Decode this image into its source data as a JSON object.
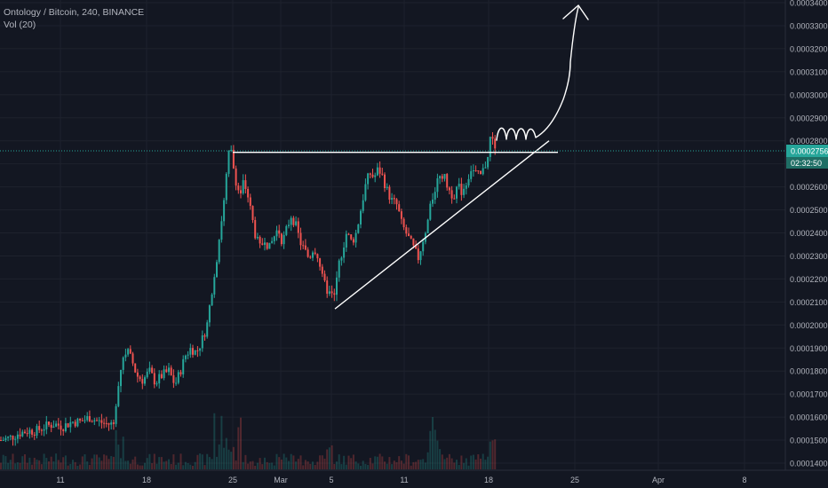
{
  "header": {
    "symbol": "Ontology / Bitcoin, 240, BINANCE",
    "vol_label": "Vol (20)"
  },
  "price_axis": {
    "labels": [
      "0.0003400",
      "0.0003300",
      "0.0003200",
      "0.0003100",
      "0.0003000",
      "0.0002900",
      "0.0002800",
      "0.0002700",
      "0.0002600",
      "0.0002500",
      "0.0002400",
      "0.0002300",
      "0.0002200",
      "0.0002100",
      "0.0002000",
      "0.0001900",
      "0.0001800",
      "0.0001700",
      "0.0001600",
      "0.0001500",
      "0.0001400"
    ],
    "last_price": "0.0002756",
    "countdown": "02:32:50"
  },
  "time_axis": {
    "labels": [
      "11",
      "18",
      "25",
      "Mar",
      "5",
      "11",
      "18",
      "25",
      "Apr",
      "8"
    ]
  },
  "colors": {
    "background": "#131722",
    "grid": "#1e222d",
    "up": "#26a69a",
    "down": "#ef5350",
    "price_tag": "#26a69a",
    "drawing": "#ffffff"
  },
  "chart_data": {
    "type": "candlestick",
    "symbol": "Ontology / Bitcoin",
    "interval": "240",
    "exchange": "BINANCE",
    "indicator": "Vol (20)",
    "ylim": [
      0.000139,
      0.000344
    ],
    "last_price": 0.0002756,
    "x_tick_labels": [
      "11",
      "18",
      "25",
      "Mar",
      "5",
      "11",
      "18",
      "25",
      "Apr",
      "8"
    ],
    "price_path": [
      {
        "x": 0,
        "y": 0.00015
      },
      {
        "x": 10,
        "y": 0.000151
      },
      {
        "x": 20,
        "y": 0.000153
      },
      {
        "x": 30,
        "y": 0.000154
      },
      {
        "x": 40,
        "y": 0.000154
      },
      {
        "x": 50,
        "y": 0.000156
      },
      {
        "x": 60,
        "y": 0.000157
      },
      {
        "x": 70,
        "y": 0.000156
      },
      {
        "x": 80,
        "y": 0.000158
      },
      {
        "x": 90,
        "y": 0.000158
      },
      {
        "x": 100,
        "y": 0.00016
      },
      {
        "x": 110,
        "y": 0.000158
      },
      {
        "x": 120,
        "y": 0.000157
      },
      {
        "x": 127,
        "y": 0.000157
      },
      {
        "x": 131,
        "y": 0.000172
      },
      {
        "x": 137,
        "y": 0.000186
      },
      {
        "x": 142,
        "y": 0.000189
      },
      {
        "x": 148,
        "y": 0.000184
      },
      {
        "x": 153,
        "y": 0.000178
      },
      {
        "x": 160,
        "y": 0.000176
      },
      {
        "x": 167,
        "y": 0.00018
      },
      {
        "x": 174,
        "y": 0.000175
      },
      {
        "x": 181,
        "y": 0.000178
      },
      {
        "x": 189,
        "y": 0.00018
      },
      {
        "x": 196,
        "y": 0.000174
      },
      {
        "x": 202,
        "y": 0.00018
      },
      {
        "x": 208,
        "y": 0.000187
      },
      {
        "x": 214,
        "y": 0.00019
      },
      {
        "x": 220,
        "y": 0.000188
      },
      {
        "x": 226,
        "y": 0.000193
      },
      {
        "x": 232,
        "y": 0.0002
      },
      {
        "x": 237,
        "y": 0.000214
      },
      {
        "x": 242,
        "y": 0.000226
      },
      {
        "x": 247,
        "y": 0.000242
      },
      {
        "x": 252,
        "y": 0.000256
      },
      {
        "x": 255,
        "y": 0.00027
      },
      {
        "x": 258,
        "y": 0.000278
      },
      {
        "x": 261,
        "y": 0.00027
      },
      {
        "x": 265,
        "y": 0.000262
      },
      {
        "x": 269,
        "y": 0.000256
      },
      {
        "x": 273,
        "y": 0.000262
      },
      {
        "x": 277,
        "y": 0.000258
      },
      {
        "x": 282,
        "y": 0.000248
      },
      {
        "x": 287,
        "y": 0.000238
      },
      {
        "x": 292,
        "y": 0.000233
      },
      {
        "x": 297,
        "y": 0.000238
      },
      {
        "x": 302,
        "y": 0.000233
      },
      {
        "x": 307,
        "y": 0.000238
      },
      {
        "x": 312,
        "y": 0.000242
      },
      {
        "x": 317,
        "y": 0.000236
      },
      {
        "x": 322,
        "y": 0.000242
      },
      {
        "x": 327,
        "y": 0.000248
      },
      {
        "x": 332,
        "y": 0.000243
      },
      {
        "x": 337,
        "y": 0.000236
      },
      {
        "x": 342,
        "y": 0.000232
      },
      {
        "x": 347,
        "y": 0.000229
      },
      {
        "x": 352,
        "y": 0.000234
      },
      {
        "x": 357,
        "y": 0.00023
      },
      {
        "x": 361,
        "y": 0.000221
      },
      {
        "x": 366,
        "y": 0.000216
      },
      {
        "x": 371,
        "y": 0.000213
      },
      {
        "x": 376,
        "y": 0.000212
      },
      {
        "x": 379,
        "y": 0.000224
      },
      {
        "x": 384,
        "y": 0.000232
      },
      {
        "x": 389,
        "y": 0.00024
      },
      {
        "x": 395,
        "y": 0.000236
      },
      {
        "x": 400,
        "y": 0.00024
      },
      {
        "x": 405,
        "y": 0.00025
      },
      {
        "x": 410,
        "y": 0.00026
      },
      {
        "x": 415,
        "y": 0.000266
      },
      {
        "x": 420,
        "y": 0.000264
      },
      {
        "x": 425,
        "y": 0.000268
      },
      {
        "x": 430,
        "y": 0.000264
      },
      {
        "x": 435,
        "y": 0.000258
      },
      {
        "x": 440,
        "y": 0.000254
      },
      {
        "x": 446,
        "y": 0.000252
      },
      {
        "x": 451,
        "y": 0.000244
      },
      {
        "x": 456,
        "y": 0.00024
      },
      {
        "x": 461,
        "y": 0.000236
      },
      {
        "x": 466,
        "y": 0.000232
      },
      {
        "x": 470,
        "y": 0.000229
      },
      {
        "x": 475,
        "y": 0.000237
      },
      {
        "x": 480,
        "y": 0.000244
      },
      {
        "x": 485,
        "y": 0.000254
      },
      {
        "x": 489,
        "y": 0.00026
      },
      {
        "x": 494,
        "y": 0.000266
      },
      {
        "x": 499,
        "y": 0.000264
      },
      {
        "x": 504,
        "y": 0.000259
      },
      {
        "x": 509,
        "y": 0.000256
      },
      {
        "x": 514,
        "y": 0.00026
      },
      {
        "x": 519,
        "y": 0.000258
      },
      {
        "x": 524,
        "y": 0.000262
      },
      {
        "x": 529,
        "y": 0.000268
      },
      {
        "x": 534,
        "y": 0.000266
      },
      {
        "x": 539,
        "y": 0.000264
      },
      {
        "x": 544,
        "y": 0.000268
      },
      {
        "x": 549,
        "y": 0.000274
      },
      {
        "x": 552,
        "y": 0.000284
      },
      {
        "x": 555,
        "y": 0.000279
      },
      {
        "x": 558,
        "y": 0.000276
      }
    ],
    "annotations": [
      {
        "type": "horizontal_resistance",
        "x_start": 262,
        "x_end": 628,
        "price": 0.000275
      },
      {
        "type": "ascending_trendline",
        "from": {
          "x": 377,
          "price": 0.000207
        },
        "to": {
          "x": 618,
          "price": 0.00028
        }
      },
      {
        "type": "projection_arrow",
        "description": "price path projection breaking upward",
        "target_price": 0.00034
      }
    ]
  }
}
